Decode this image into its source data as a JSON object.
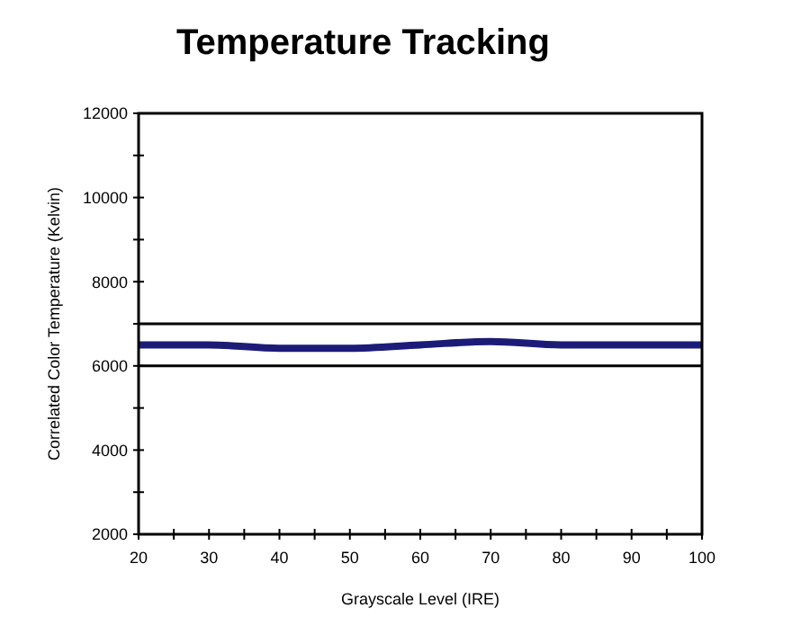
{
  "chart_data": {
    "type": "line",
    "title": "Temperature Tracking",
    "xlabel": "Grayscale Level (IRE)",
    "ylabel": "Correlated Color Temperature (Kelvin)",
    "x": [
      20,
      30,
      40,
      50,
      60,
      70,
      80,
      90,
      100
    ],
    "series": [
      {
        "color": "#1c1c78",
        "values": [
          6500,
          6500,
          6420,
          6420,
          6500,
          6580,
          6500,
          6500,
          6500
        ]
      }
    ],
    "xlim": [
      20,
      100
    ],
    "ylim": [
      2000,
      12000
    ],
    "xticks": [
      20,
      {
        "value": 25,
        "label": null
      },
      30,
      {
        "value": 35,
        "label": null
      },
      40,
      {
        "value": 45,
        "label": null
      },
      50,
      {
        "value": 55,
        "label": null
      },
      60,
      {
        "value": 65,
        "label": null
      },
      70,
      {
        "value": 75,
        "label": null
      },
      80,
      {
        "value": 85,
        "label": null
      },
      90,
      {
        "value": 95,
        "label": null
      },
      100
    ],
    "yticks": [
      2000,
      {
        "value": 3000,
        "label": null
      },
      4000,
      {
        "value": 5000,
        "label": null
      },
      6000,
      {
        "value": 7000,
        "label": null
      },
      8000,
      {
        "value": 9000,
        "label": null
      },
      10000,
      {
        "value": 11000,
        "label": null
      },
      12000
    ],
    "ref_lines": [
      {
        "axis": "y",
        "value": 7000,
        "color": "#000000"
      },
      {
        "axis": "y",
        "value": 6000,
        "color": "#000000"
      }
    ],
    "grid": false,
    "marker": "none",
    "line_style": "solid"
  }
}
